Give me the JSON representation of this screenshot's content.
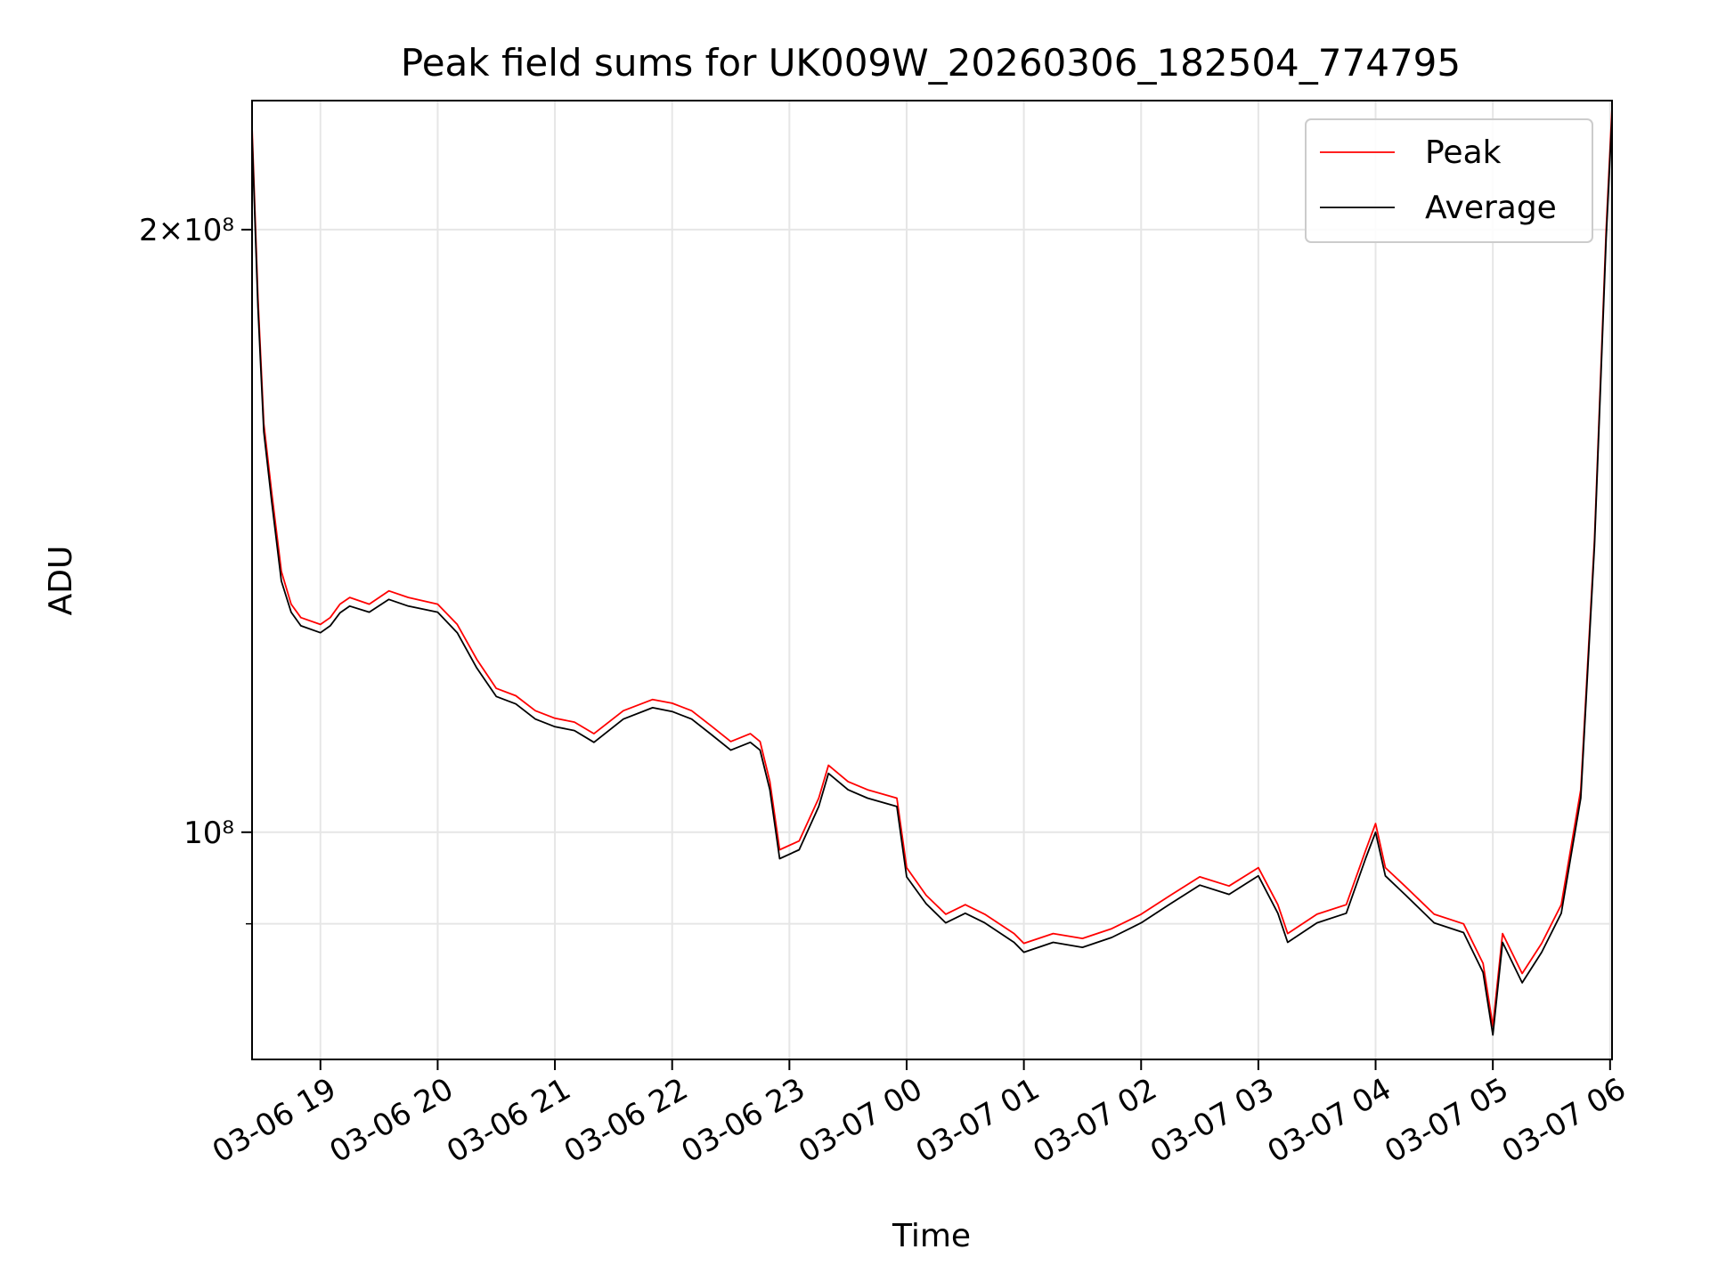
{
  "chart_data": {
    "type": "line",
    "title": "Peak field sums for UK009W_20260306_182504_774795",
    "xlabel": "Time",
    "ylabel": "ADU",
    "yscale": "log",
    "xlim": [
      "2026-03-06 18:25",
      "2026-03-07 06:01"
    ],
    "ylim": [
      77000000,
      232000000
    ],
    "grid": true,
    "legend_position": "top-right",
    "x_ticks": [
      {
        "x": "2026-03-06 19:00",
        "label": "03-06 19"
      },
      {
        "x": "2026-03-06 20:00",
        "label": "03-06 20"
      },
      {
        "x": "2026-03-06 21:00",
        "label": "03-06 21"
      },
      {
        "x": "2026-03-06 22:00",
        "label": "03-06 22"
      },
      {
        "x": "2026-03-06 23:00",
        "label": "03-06 23"
      },
      {
        "x": "2026-03-07 00:00",
        "label": "03-07 00"
      },
      {
        "x": "2026-03-07 01:00",
        "label": "03-07 01"
      },
      {
        "x": "2026-03-07 02:00",
        "label": "03-07 02"
      },
      {
        "x": "2026-03-07 03:00",
        "label": "03-07 03"
      },
      {
        "x": "2026-03-07 04:00",
        "label": "03-07 04"
      },
      {
        "x": "2026-03-07 05:00",
        "label": "03-07 05"
      },
      {
        "x": "2026-03-07 06:00",
        "label": "03-07 06"
      }
    ],
    "y_ticks": [
      {
        "value": 100000000,
        "label": "10⁸"
      },
      {
        "value": 200000000,
        "label": "2×10⁸"
      }
    ],
    "y_minor_ticks": [
      90000000
    ],
    "x": [
      "2026-03-06 18:25",
      "2026-03-06 18:28",
      "2026-03-06 18:31",
      "2026-03-06 18:35",
      "2026-03-06 18:40",
      "2026-03-06 18:45",
      "2026-03-06 18:50",
      "2026-03-06 19:00",
      "2026-03-06 19:05",
      "2026-03-06 19:10",
      "2026-03-06 19:15",
      "2026-03-06 19:25",
      "2026-03-06 19:35",
      "2026-03-06 19:45",
      "2026-03-06 20:00",
      "2026-03-06 20:10",
      "2026-03-06 20:20",
      "2026-03-06 20:30",
      "2026-03-06 20:40",
      "2026-03-06 20:50",
      "2026-03-06 21:00",
      "2026-03-06 21:10",
      "2026-03-06 21:20",
      "2026-03-06 21:35",
      "2026-03-06 21:50",
      "2026-03-06 22:00",
      "2026-03-06 22:10",
      "2026-03-06 22:20",
      "2026-03-06 22:30",
      "2026-03-06 22:40",
      "2026-03-06 22:45",
      "2026-03-06 22:50",
      "2026-03-06 22:55",
      "2026-03-06 23:05",
      "2026-03-06 23:15",
      "2026-03-06 23:20",
      "2026-03-06 23:30",
      "2026-03-06 23:40",
      "2026-03-06 23:55",
      "2026-03-07 00:00",
      "2026-03-07 00:10",
      "2026-03-07 00:20",
      "2026-03-07 00:30",
      "2026-03-07 00:40",
      "2026-03-07 00:55",
      "2026-03-07 01:00",
      "2026-03-07 01:15",
      "2026-03-07 01:30",
      "2026-03-07 01:45",
      "2026-03-07 02:00",
      "2026-03-07 02:15",
      "2026-03-07 02:30",
      "2026-03-07 02:45",
      "2026-03-07 03:00",
      "2026-03-07 03:10",
      "2026-03-07 03:15",
      "2026-03-07 03:30",
      "2026-03-07 03:45",
      "2026-03-07 03:55",
      "2026-03-07 04:00",
      "2026-03-07 04:05",
      "2026-03-07 04:15",
      "2026-03-07 04:30",
      "2026-03-07 04:45",
      "2026-03-07 04:55",
      "2026-03-07 05:00",
      "2026-03-07 05:05",
      "2026-03-07 05:15",
      "2026-03-07 05:25",
      "2026-03-07 05:35",
      "2026-03-07 05:45",
      "2026-03-07 05:52",
      "2026-03-07 05:58",
      "2026-03-07 06:01"
    ],
    "series": [
      {
        "name": "Peak",
        "color": "#ff0000",
        "values": [
          225000000,
          185000000,
          160000000,
          148000000,
          135000000,
          130000000,
          128000000,
          127000000,
          128000000,
          130000000,
          131000000,
          130000000,
          132000000,
          131000000,
          130000000,
          127000000,
          122000000,
          118000000,
          117000000,
          115000000,
          114000000,
          113500000,
          112000000,
          115000000,
          116500000,
          116000000,
          115000000,
          113000000,
          111000000,
          112000000,
          111000000,
          106000000,
          98000000,
          99000000,
          104000000,
          108000000,
          106000000,
          105000000,
          104000000,
          96000000,
          93000000,
          91000000,
          92000000,
          91000000,
          89000000,
          88000000,
          89000000,
          88500000,
          89500000,
          91000000,
          93000000,
          95000000,
          94000000,
          96000000,
          92000000,
          89000000,
          91000000,
          92000000,
          98000000,
          101000000,
          96000000,
          94000000,
          91000000,
          90000000,
          86000000,
          80000000,
          89000000,
          85000000,
          88000000,
          92000000,
          105000000,
          140000000,
          200000000,
          230000000
        ]
      },
      {
        "name": "Average",
        "color": "#000000",
        "values": [
          223000000,
          183000000,
          158500000,
          146500000,
          133500000,
          128800000,
          126800000,
          125800000,
          126800000,
          128700000,
          129700000,
          128800000,
          130700000,
          129700000,
          128800000,
          125800000,
          120800000,
          116900000,
          115900000,
          113900000,
          112900000,
          112400000,
          110900000,
          113900000,
          115400000,
          114900000,
          113900000,
          111900000,
          109900000,
          110900000,
          109900000,
          105000000,
          97000000,
          98000000,
          103000000,
          107000000,
          105000000,
          104000000,
          103000000,
          95000000,
          92100000,
          90100000,
          91100000,
          90100000,
          88100000,
          87100000,
          88100000,
          87600000,
          88600000,
          90100000,
          92100000,
          94100000,
          93100000,
          95100000,
          91100000,
          88100000,
          90100000,
          91100000,
          97100000,
          100000000,
          95100000,
          93100000,
          90100000,
          89100000,
          85100000,
          79200000,
          88100000,
          84100000,
          87100000,
          91100000,
          104000000,
          139000000,
          198000000,
          228000000
        ]
      }
    ]
  }
}
